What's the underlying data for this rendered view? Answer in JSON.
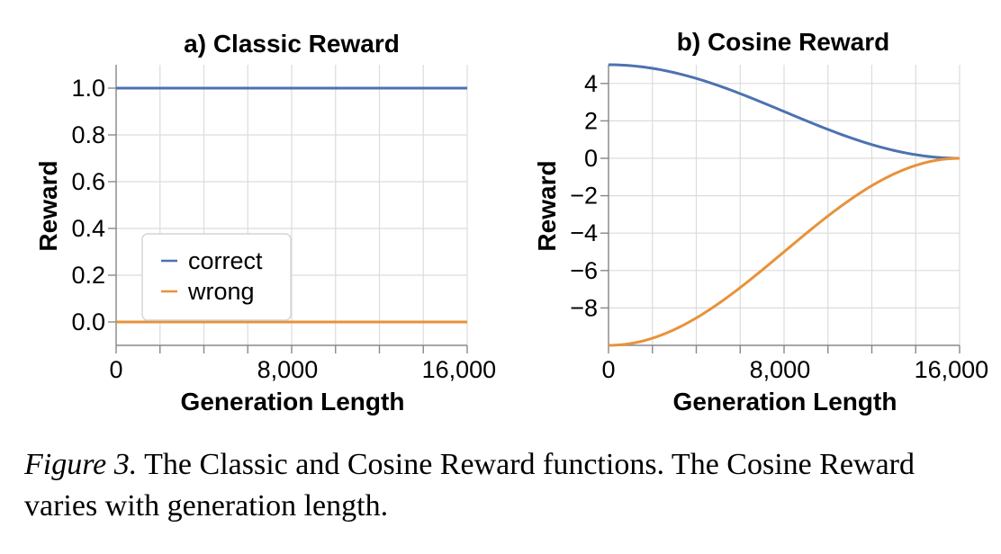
{
  "chart_data": [
    {
      "type": "line",
      "title": "a) Classic Reward",
      "xlabel": "Generation Length",
      "ylabel": "Reward",
      "xlim": [
        0,
        16384
      ],
      "ylim": [
        -0.1,
        1.1
      ],
      "xticks": [
        0,
        8000,
        16000
      ],
      "xtick_labels": [
        "0",
        "8,000",
        "16,000"
      ],
      "yticks": [
        0,
        0.2,
        0.4,
        0.6,
        0.8,
        1.0
      ],
      "ytick_labels": [
        "0.0",
        "0.2",
        "0.4",
        "0.6",
        "0.8",
        "1.0"
      ],
      "grid": true,
      "legend": "bottom-left",
      "series": [
        {
          "name": "correct",
          "color": "#4c72b0",
          "x": [
            0,
            16384
          ],
          "y": [
            1.0,
            1.0
          ]
        },
        {
          "name": "wrong",
          "color": "#e8923a",
          "x": [
            0,
            16384
          ],
          "y": [
            0.0,
            0.0
          ]
        }
      ]
    },
    {
      "type": "line",
      "title": "b) Cosine Reward",
      "xlabel": "Generation Length",
      "ylabel": "Reward",
      "xlim": [
        0,
        16384
      ],
      "ylim": [
        -10,
        5
      ],
      "xticks": [
        0,
        8000,
        16000
      ],
      "xtick_labels": [
        "0",
        "8,000",
        "16,000"
      ],
      "yticks": [
        -8,
        -6,
        -4,
        -2,
        0,
        2,
        4
      ],
      "ytick_labels": [
        "−8",
        "−6",
        "−4",
        "−2",
        "0",
        "2",
        "4"
      ],
      "grid": true,
      "series": [
        {
          "name": "correct",
          "color": "#4c72b0",
          "x": [
            0,
            2048,
            4096,
            6144,
            8192,
            10240,
            12288,
            14336,
            16384
          ],
          "y": [
            5.0,
            4.81,
            4.27,
            3.46,
            2.5,
            1.54,
            0.73,
            0.19,
            0.0
          ]
        },
        {
          "name": "wrong",
          "color": "#e8923a",
          "x": [
            0,
            2048,
            4096,
            6144,
            8192,
            10240,
            12288,
            14336,
            16384
          ],
          "y": [
            -10.0,
            -9.62,
            -8.54,
            -6.91,
            -5.0,
            -3.09,
            -1.46,
            -0.38,
            0.0
          ]
        }
      ]
    }
  ],
  "caption": {
    "label": "Figure 3.",
    "text": " The Classic and Cosine Reward functions. The Cosine Reward varies with generation length."
  }
}
